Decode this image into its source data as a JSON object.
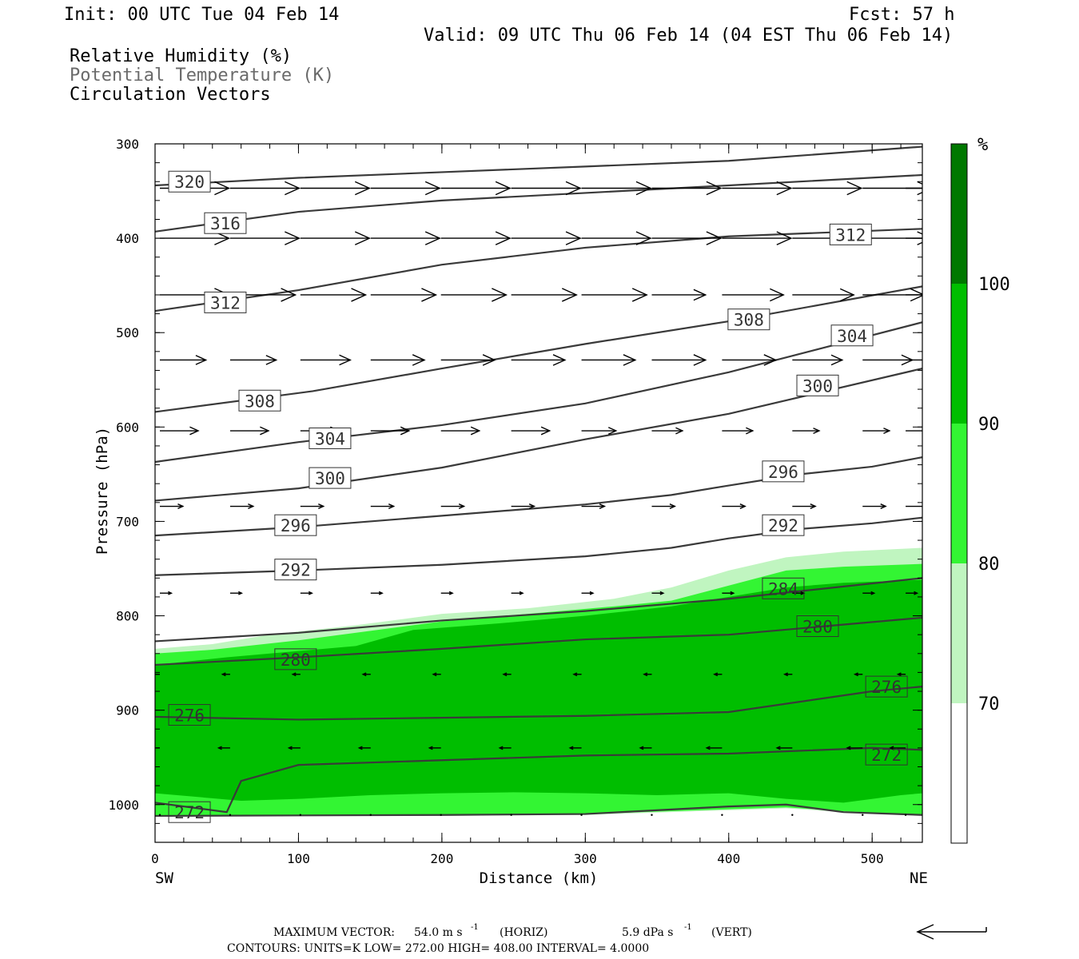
{
  "header": {
    "init": "Init: 00 UTC Tue 04 Feb 14",
    "fcst": "Fcst:   57 h",
    "valid": "Valid: 09 UTC Thu 06 Feb 14 (04 EST Thu 06 Feb 14)",
    "field1": "Relative Humidity (%)",
    "field2": "Potential Temperature (K)",
    "field3": "Circulation Vectors"
  },
  "footer": {
    "max_vector_label": "MAXIMUM VECTOR:",
    "max_vector_horiz": "54.0 m s",
    "horiz_tag": "(HORIZ)",
    "max_vector_vert": "5.9 dPa s",
    "vert_tag": "(VERT)",
    "contours": "CONTOURS:  UNITS=K  LOW=   272.00       HIGH=   408.00       INTERVAL=     4.0000",
    "exp": "-1"
  },
  "colors": {
    "rh_70_80": "#c0f5c0",
    "rh_80_90": "#33f533",
    "rh_90_100": "#00be00",
    "rh_100": "#007800",
    "theta_line": "#3a3a3a",
    "vector": "#000000"
  },
  "chart_data": {
    "type": "cross-section",
    "xlabel": "Distance (km)",
    "ylabel": "Pressure (hPa)",
    "x_left_label": "SW",
    "x_right_label": "NE",
    "xlim": [
      0,
      535
    ],
    "ylim": [
      1040,
      300
    ],
    "x_ticks": [
      0,
      100,
      200,
      300,
      400,
      500
    ],
    "y_ticks": [
      300,
      400,
      500,
      600,
      700,
      800,
      900,
      1000
    ],
    "colorbar": {
      "unit": "%",
      "levels": [
        70,
        80,
        90,
        100
      ],
      "labels": [
        "70",
        "80",
        "90",
        "100"
      ]
    },
    "rh_regions": [
      {
        "name": "70-80",
        "top": [
          [
            0,
            835
          ],
          [
            40,
            830
          ],
          [
            80,
            820
          ],
          [
            140,
            810
          ],
          [
            200,
            798
          ],
          [
            260,
            792
          ],
          [
            320,
            782
          ],
          [
            360,
            770
          ],
          [
            400,
            752
          ],
          [
            440,
            738
          ],
          [
            480,
            732
          ],
          [
            535,
            728
          ]
        ],
        "bottom": [
          [
            0,
            1013
          ],
          [
            100,
            1012
          ],
          [
            200,
            1012
          ],
          [
            300,
            1011
          ],
          [
            400,
            1006
          ],
          [
            440,
            1004
          ],
          [
            480,
            1008
          ],
          [
            535,
            1012
          ]
        ]
      },
      {
        "name": "80-90",
        "top": [
          [
            0,
            840
          ],
          [
            40,
            836
          ],
          [
            100,
            826
          ],
          [
            200,
            806
          ],
          [
            260,
            798
          ],
          [
            320,
            790
          ],
          [
            360,
            784
          ],
          [
            400,
            768
          ],
          [
            440,
            752
          ],
          [
            480,
            748
          ],
          [
            535,
            745
          ]
        ],
        "bottom": [
          [
            0,
            1012
          ],
          [
            100,
            1011
          ],
          [
            200,
            1011
          ],
          [
            300,
            1010
          ],
          [
            400,
            1005
          ],
          [
            440,
            1003
          ],
          [
            480,
            1007
          ],
          [
            535,
            1011
          ]
        ]
      },
      {
        "name": "90-100",
        "top": [
          [
            0,
            852
          ],
          [
            50,
            844
          ],
          [
            80,
            840
          ],
          [
            140,
            832
          ],
          [
            180,
            815
          ],
          [
            240,
            808
          ],
          [
            300,
            800
          ],
          [
            360,
            790
          ],
          [
            400,
            780
          ],
          [
            440,
            770
          ],
          [
            480,
            765
          ],
          [
            535,
            762
          ]
        ],
        "bottom": [
          [
            0,
            988
          ],
          [
            30,
            992
          ],
          [
            60,
            996
          ],
          [
            100,
            994
          ],
          [
            150,
            990
          ],
          [
            200,
            988
          ],
          [
            250,
            987
          ],
          [
            300,
            988
          ],
          [
            350,
            990
          ],
          [
            400,
            988
          ],
          [
            440,
            994
          ],
          [
            480,
            998
          ],
          [
            520,
            990
          ],
          [
            535,
            988
          ]
        ]
      }
    ],
    "theta_contours": [
      {
        "value": 320,
        "points": [
          [
            0,
            344
          ],
          [
            100,
            336
          ],
          [
            200,
            330
          ],
          [
            300,
            324
          ],
          [
            400,
            318
          ],
          [
            535,
            303
          ]
        ]
      },
      {
        "value": 316,
        "points": [
          [
            0,
            393
          ],
          [
            100,
            372
          ],
          [
            200,
            360
          ],
          [
            300,
            352
          ],
          [
            400,
            344
          ],
          [
            535,
            333
          ]
        ]
      },
      {
        "value": 312,
        "points": [
          [
            0,
            477
          ],
          [
            100,
            455
          ],
          [
            200,
            428
          ],
          [
            300,
            410
          ],
          [
            400,
            398
          ],
          [
            535,
            390
          ]
        ]
      },
      {
        "value": 308,
        "points": [
          [
            0,
            584
          ],
          [
            110,
            562
          ],
          [
            200,
            538
          ],
          [
            300,
            512
          ],
          [
            400,
            488
          ],
          [
            535,
            451
          ]
        ]
      },
      {
        "value": 304,
        "points": [
          [
            0,
            637
          ],
          [
            100,
            616
          ],
          [
            200,
            598
          ],
          [
            300,
            575
          ],
          [
            400,
            542
          ],
          [
            535,
            489
          ]
        ]
      },
      {
        "value": 300,
        "points": [
          [
            0,
            678
          ],
          [
            100,
            665
          ],
          [
            200,
            643
          ],
          [
            300,
            613
          ],
          [
            400,
            586
          ],
          [
            535,
            538
          ]
        ]
      },
      {
        "value": 296,
        "points": [
          [
            0,
            715
          ],
          [
            100,
            706
          ],
          [
            200,
            694
          ],
          [
            300,
            682
          ],
          [
            360,
            672
          ],
          [
            400,
            662
          ],
          [
            450,
            650
          ],
          [
            500,
            642
          ],
          [
            535,
            632
          ]
        ]
      },
      {
        "value": 292,
        "points": [
          [
            0,
            757
          ],
          [
            100,
            752
          ],
          [
            200,
            746
          ],
          [
            300,
            737
          ],
          [
            360,
            728
          ],
          [
            400,
            718
          ],
          [
            450,
            708
          ],
          [
            500,
            702
          ],
          [
            535,
            696
          ]
        ]
      },
      {
        "value": 284,
        "points": [
          [
            0,
            827
          ],
          [
            100,
            818
          ],
          [
            200,
            805
          ],
          [
            300,
            795
          ],
          [
            400,
            782
          ],
          [
            535,
            760
          ]
        ]
      },
      {
        "value": 280,
        "points": [
          [
            0,
            852
          ],
          [
            100,
            844
          ],
          [
            200,
            835
          ],
          [
            300,
            825
          ],
          [
            400,
            820
          ],
          [
            535,
            802
          ]
        ]
      },
      {
        "value": 276,
        "points": [
          [
            0,
            907
          ],
          [
            100,
            910
          ],
          [
            200,
            908
          ],
          [
            300,
            906
          ],
          [
            400,
            902
          ],
          [
            500,
            880
          ],
          [
            535,
            875
          ]
        ]
      },
      {
        "value": 272,
        "points": [
          [
            0,
            998
          ],
          [
            50,
            1008
          ],
          [
            60,
            975
          ],
          [
            100,
            958
          ],
          [
            200,
            953
          ],
          [
            300,
            948
          ],
          [
            400,
            946
          ],
          [
            500,
            940
          ],
          [
            535,
            942
          ]
        ]
      },
      {
        "value": 272,
        "points": [
          [
            0,
            1012
          ],
          [
            200,
            1011
          ],
          [
            300,
            1010
          ],
          [
            400,
            1002
          ],
          [
            440,
            1000
          ],
          [
            480,
            1008
          ],
          [
            535,
            1011
          ]
        ]
      }
    ],
    "theta_labels": [
      {
        "value": "320",
        "x": 24,
        "p": 340
      },
      {
        "value": "316",
        "x": 49,
        "p": 384
      },
      {
        "value": "312",
        "x": 49,
        "p": 468
      },
      {
        "value": "312",
        "x": 485,
        "p": 396
      },
      {
        "value": "308",
        "x": 73,
        "p": 572
      },
      {
        "value": "308",
        "x": 414,
        "p": 486
      },
      {
        "value": "304",
        "x": 122,
        "p": 612
      },
      {
        "value": "304",
        "x": 486,
        "p": 503
      },
      {
        "value": "300",
        "x": 122,
        "p": 654
      },
      {
        "value": "300",
        "x": 462,
        "p": 556
      },
      {
        "value": "296",
        "x": 98,
        "p": 704
      },
      {
        "value": "296",
        "x": 438,
        "p": 647
      },
      {
        "value": "292",
        "x": 98,
        "p": 751
      },
      {
        "value": "292",
        "x": 438,
        "p": 704
      },
      {
        "value": "284",
        "x": 438,
        "p": 771
      },
      {
        "value": "280",
        "x": 98,
        "p": 846
      },
      {
        "value": "280",
        "x": 462,
        "p": 811
      },
      {
        "value": "276",
        "x": 24,
        "p": 905
      },
      {
        "value": "276",
        "x": 510,
        "p": 875
      },
      {
        "value": "272",
        "x": 24,
        "p": 1008
      },
      {
        "value": "272",
        "x": 510,
        "p": 947
      }
    ],
    "vector_rows": [
      {
        "p": 347,
        "u": [
          36,
          36,
          36,
          36,
          36,
          36,
          36,
          36,
          36,
          36,
          36,
          36,
          36,
          36
        ],
        "w": [
          0,
          0,
          0,
          0,
          0,
          0,
          0,
          0,
          0,
          0,
          0,
          0,
          0,
          0
        ]
      },
      {
        "p": 400,
        "u": [
          36,
          36,
          36,
          36,
          36,
          36,
          36,
          36,
          36,
          36,
          36,
          36,
          36,
          36
        ],
        "w": [
          0,
          0,
          0,
          0,
          0,
          0,
          0,
          0,
          0,
          0,
          0,
          0,
          0,
          0
        ]
      },
      {
        "p": 460,
        "u": [
          36,
          34,
          34,
          34,
          34,
          34,
          34,
          28,
          32,
          32,
          32,
          32,
          32,
          30
        ],
        "w": [
          0,
          0,
          0,
          0,
          0,
          0,
          0,
          0,
          0,
          0,
          0,
          0,
          0,
          0
        ]
      },
      {
        "p": 529,
        "u": [
          24,
          24,
          26,
          28,
          28,
          28,
          28,
          28,
          28,
          26,
          26,
          24,
          22,
          20
        ],
        "w": [
          0,
          0,
          0,
          0,
          0,
          0,
          0,
          0,
          0,
          0,
          0,
          0,
          0,
          0
        ]
      },
      {
        "p": 604,
        "u": [
          20,
          20,
          20,
          20,
          20,
          20,
          18,
          16,
          16,
          14,
          14,
          14,
          14,
          12
        ],
        "w": [
          0,
          0,
          0,
          0,
          0,
          0,
          0,
          0,
          0,
          0,
          0,
          0,
          0,
          0
        ]
      },
      {
        "p": 684,
        "u": [
          12,
          12,
          12,
          12,
          12,
          12,
          12,
          12,
          12,
          12,
          12,
          12,
          12,
          12
        ],
        "w": [
          0,
          0,
          0,
          0,
          0,
          0,
          0,
          0,
          0,
          0,
          0,
          0,
          0,
          0
        ]
      },
      {
        "p": 776,
        "u": [
          6,
          6,
          6,
          6,
          6,
          6,
          6,
          6,
          6,
          6,
          6,
          6,
          6,
          6
        ],
        "w": [
          0,
          0,
          0,
          0,
          0,
          0,
          0,
          0,
          0,
          0,
          0,
          0,
          0,
          0
        ]
      },
      {
        "p": 862,
        "u": [
          -4,
          -4,
          -4,
          -4,
          -4,
          -4,
          -4,
          -4,
          -4,
          -4,
          -4,
          -4,
          -4,
          -4
        ],
        "w": [
          0,
          0,
          0,
          0,
          0,
          0,
          0,
          0,
          0,
          0,
          0,
          0,
          0,
          0
        ]
      },
      {
        "p": 940,
        "u": [
          -6,
          -6,
          -6,
          -6,
          -6,
          -6,
          -6,
          -6,
          -8,
          -8,
          -8,
          -8,
          -8,
          -8
        ],
        "w": [
          0,
          0,
          0,
          0,
          0,
          0,
          0,
          0,
          0,
          0,
          0,
          0,
          0,
          0
        ]
      },
      {
        "p": 1011,
        "u": [
          0,
          0,
          0,
          0,
          0,
          0,
          0,
          0,
          0,
          0,
          0,
          0,
          0,
          0
        ],
        "w": [
          0,
          0,
          0,
          0,
          0,
          0,
          0,
          0,
          0,
          0,
          0,
          0,
          0,
          0
        ]
      }
    ],
    "vector_x": [
      0,
      49,
      98,
      147,
      196,
      245,
      294,
      343,
      392,
      441,
      490,
      535,
      535,
      535
    ]
  }
}
